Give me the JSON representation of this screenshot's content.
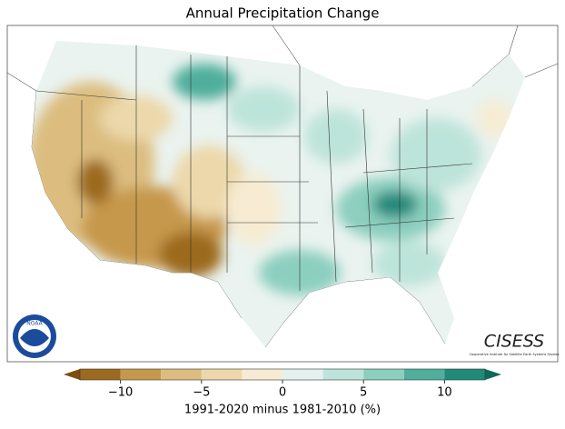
{
  "chart_data": {
    "type": "colorbar",
    "title": "Annual Precipitation Change",
    "xlabel": "1991-2020 minus 1981-2010 (%)",
    "bins": [
      -12.5,
      -10,
      -7.5,
      -5,
      -2.5,
      0,
      2.5,
      5,
      7.5,
      10,
      12.5
    ],
    "colors": [
      "#9c6a1f",
      "#c6984c",
      "#dcbd7f",
      "#ecd8aa",
      "#f7ecd3",
      "#e3f2ee",
      "#bde4da",
      "#8ccfbf",
      "#4fae9c",
      "#20897a"
    ],
    "under_color": "#7d4e10",
    "over_color": "#0d6b5c",
    "xlim": [
      -12.5,
      12.5
    ],
    "xticks": [
      {
        "value": -10,
        "label": "−10"
      },
      {
        "value": -5,
        "label": "−5"
      },
      0,
      5,
      10
    ]
  },
  "logos": {
    "noaa": "NOAA",
    "cisess": "CISESS",
    "cisess_subtitle": "Cooperative Institute for Satellite Earth Systems Studies"
  }
}
